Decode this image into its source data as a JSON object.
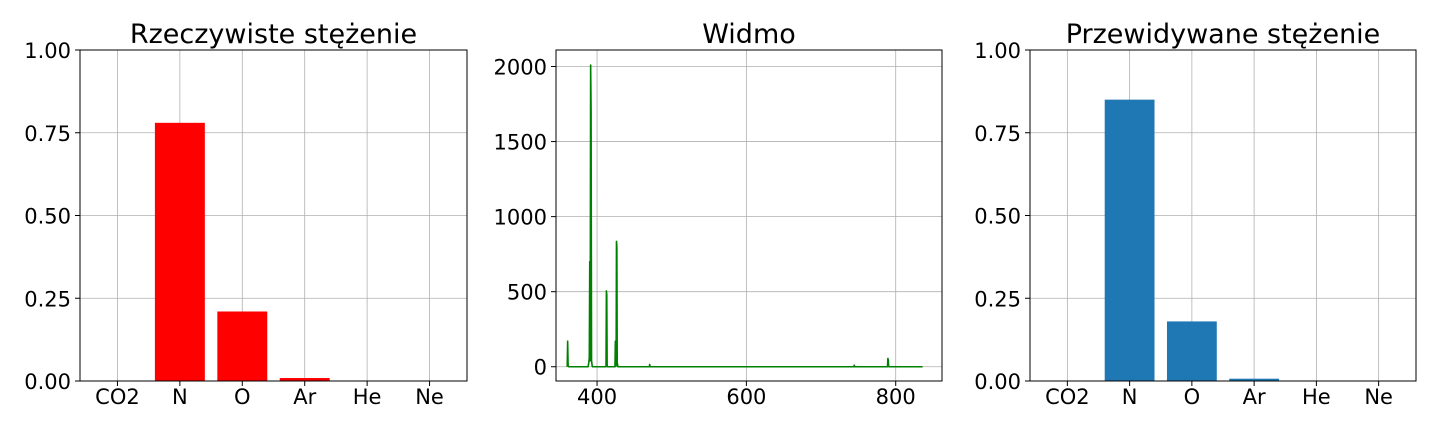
{
  "chart_data": [
    {
      "type": "bar",
      "title": "Rzeczywiste stężenie",
      "xlabel": "",
      "ylabel": "",
      "categories": [
        "CO2",
        "N",
        "O",
        "Ar",
        "He",
        "Ne"
      ],
      "values": [
        0.0,
        0.78,
        0.21,
        0.009,
        0.0,
        0.0
      ],
      "ylim": [
        0,
        1.0
      ],
      "yticks": [
        "0.00",
        "0.25",
        "0.50",
        "0.75",
        "1.00"
      ],
      "color": "#ff0000",
      "grid": true
    },
    {
      "type": "line",
      "title": "Widmo",
      "xlabel": "",
      "ylabel": "",
      "xlim": [
        345,
        862
      ],
      "ylim": [
        -95,
        2110
      ],
      "xticks": [
        "400",
        "600",
        "800"
      ],
      "yticks": [
        "0",
        "500",
        "1000",
        "1500",
        "2000"
      ],
      "color": "#008000",
      "grid": true,
      "series": [
        {
          "x": [
            360,
            360.6,
            361.2,
            362,
            388,
            389,
            389.6,
            390.2,
            390.8,
            391.4,
            392,
            392.6,
            393.5,
            394,
            412,
            412.5,
            413,
            413.5,
            414,
            424,
            424.5,
            425,
            425.5,
            426,
            426.5,
            427,
            427.5,
            428,
            470,
            470.5,
            471,
            744,
            744.5,
            745,
            789,
            789.5,
            790,
            790.5,
            791,
            836
          ],
          "y": [
            0,
            170,
            10,
            0,
            0,
            30,
            60,
            700,
            40,
            2010,
            1700,
            40,
            5,
            0,
            0,
            505,
            480,
            10,
            0,
            0,
            170,
            20,
            5,
            835,
            800,
            30,
            10,
            0,
            0,
            15,
            0,
            0,
            10,
            0,
            0,
            55,
            45,
            5,
            0,
            0
          ]
        }
      ]
    },
    {
      "type": "bar",
      "title": "Przewidywane stężenie",
      "xlabel": "",
      "ylabel": "",
      "categories": [
        "CO2",
        "N",
        "O",
        "Ar",
        "He",
        "Ne"
      ],
      "values": [
        0.0,
        0.85,
        0.18,
        0.007,
        0.0,
        0.0
      ],
      "ylim": [
        0,
        1.0
      ],
      "yticks": [
        "0.00",
        "0.25",
        "0.50",
        "0.75",
        "1.00"
      ],
      "color": "#1f77b4",
      "grid": true
    }
  ]
}
